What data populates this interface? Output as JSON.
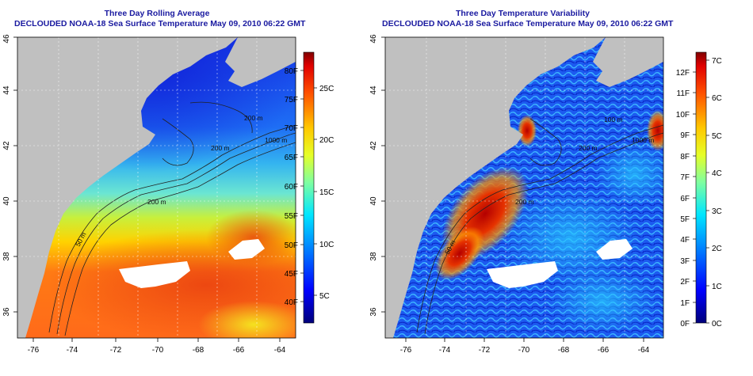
{
  "left_panel": {
    "title": "Three Day Rolling Average",
    "subtitle": "DECLOUDED NOAA-18 Sea Surface Temperature May 09, 2010 06:22 GMT",
    "x_ticks": [
      "-76",
      "-74",
      "-72",
      "-70",
      "-68",
      "-66",
      "-64"
    ],
    "y_ticks": [
      "36",
      "38",
      "40",
      "42",
      "44",
      "46"
    ],
    "contour_labels": [
      "50 m",
      "200 m",
      "200 m",
      "1000 m",
      "200 m"
    ],
    "colorbar_f": [
      "40F",
      "45F",
      "50F",
      "55F",
      "60F",
      "65F",
      "70F",
      "75F",
      "80F"
    ],
    "colorbar_c": [
      "5C",
      "10C",
      "15C",
      "20C",
      "25C"
    ]
  },
  "right_panel": {
    "title": "Three Day Temperature Variability",
    "subtitle": "DECLOUDED NOAA-18 Sea Surface Temperature May 09, 2010 06:22 GMT",
    "x_ticks": [
      "-76",
      "-74",
      "-72",
      "-70",
      "-68",
      "-66",
      "-64"
    ],
    "y_ticks": [
      "36",
      "38",
      "40",
      "42",
      "44",
      "46"
    ],
    "contour_labels": [
      "50 m",
      "200 m",
      "200 m",
      "1000 m",
      "100 m"
    ],
    "colorbar_f": [
      "0F",
      "1F",
      "2F",
      "3F",
      "4F",
      "5F",
      "6F",
      "7F",
      "8F",
      "9F",
      "10F",
      "11F",
      "12F"
    ],
    "colorbar_c": [
      "0C",
      "1C",
      "2C",
      "3C",
      "4C",
      "5C",
      "6C",
      "7C"
    ]
  },
  "colors": {
    "title": "#1a1aa0",
    "land": "#c0c0c0",
    "cloud_mask": "#ffffff"
  }
}
